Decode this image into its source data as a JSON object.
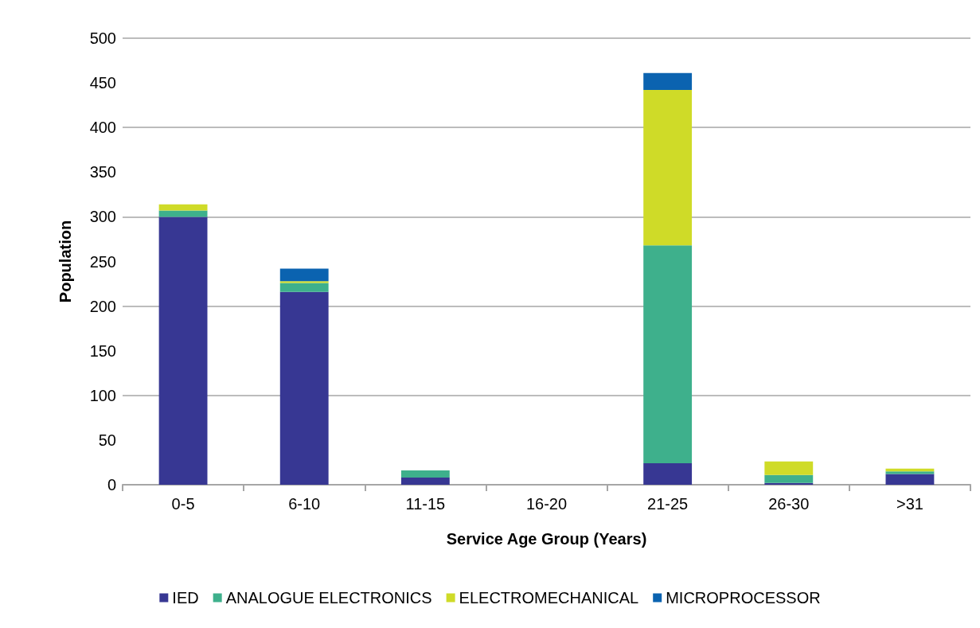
{
  "chart_data": {
    "type": "bar",
    "stacked": true,
    "xlabel": "Service Age Group (Years)",
    "ylabel": "Population",
    "categories": [
      "0-5",
      "6-10",
      "11-15",
      "16-20",
      "21-25",
      "26-30",
      ">31"
    ],
    "series": [
      {
        "name": "IED",
        "color": "#373793",
        "values": [
          300,
          216,
          8,
          0,
          24,
          2,
          12
        ]
      },
      {
        "name": "ANALOGUE ELECTRONICS",
        "color": "#3eb08c",
        "values": [
          7,
          10,
          8,
          0,
          244,
          9,
          3
        ]
      },
      {
        "name": "ELECTROMECHANICAL",
        "color": "#cfdb28",
        "values": [
          7,
          2,
          0,
          0,
          174,
          15,
          3
        ]
      },
      {
        "name": "MICROPROCESSOR",
        "color": "#0b63b0",
        "values": [
          0,
          14,
          0,
          0,
          19,
          0,
          0
        ]
      }
    ],
    "ylim": [
      0,
      500
    ],
    "yticks": [
      0,
      50,
      100,
      150,
      200,
      250,
      300,
      350,
      400,
      450,
      500
    ],
    "grid": "y",
    "legend": "bottom"
  }
}
